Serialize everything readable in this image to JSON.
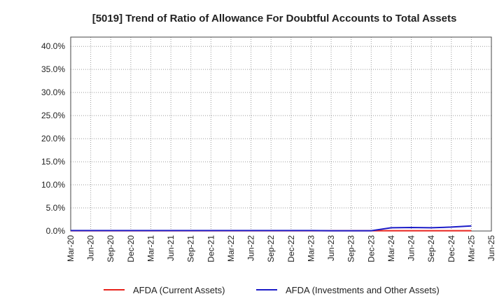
{
  "chart_data": {
    "type": "line",
    "title": "[5019]  Trend of Ratio of Allowance For Doubtful Accounts to Total Assets",
    "xlabel": "",
    "ylabel": "",
    "x_tick_labels": [
      "Mar-20",
      "Jun-20",
      "Sep-20",
      "Dec-20",
      "Mar-21",
      "Jun-21",
      "Sep-21",
      "Dec-21",
      "Mar-22",
      "Jun-22",
      "Sep-22",
      "Dec-22",
      "Mar-23",
      "Jun-23",
      "Sep-23",
      "Dec-23",
      "Mar-24",
      "Jun-24",
      "Sep-24",
      "Dec-24",
      "Mar-25",
      "Jun-25"
    ],
    "y_tick_labels": [
      "0.0%",
      "5.0%",
      "10.0%",
      "15.0%",
      "20.0%",
      "25.0%",
      "30.0%",
      "35.0%",
      "40.0%"
    ],
    "y_ticks": [
      0,
      5,
      10,
      15,
      20,
      25,
      30,
      35,
      40
    ],
    "ylim": [
      0,
      42
    ],
    "grid": true,
    "legend_position": "bottom",
    "x": [
      "Mar-20",
      "Jun-20",
      "Sep-20",
      "Dec-20",
      "Mar-21",
      "Jun-21",
      "Sep-21",
      "Dec-21",
      "Mar-22",
      "Jun-22",
      "Sep-22",
      "Dec-22",
      "Mar-23",
      "Jun-23",
      "Sep-23",
      "Dec-23",
      "Mar-24",
      "Jun-24",
      "Sep-24",
      "Dec-24",
      "Mar-25"
    ],
    "series": [
      {
        "name": "AFDA (Current Assets)",
        "color": "#e8231c",
        "values": [
          0.05,
          0.05,
          0.05,
          0.05,
          0.05,
          0.05,
          0.05,
          0.05,
          0.05,
          0.05,
          0.05,
          0.05,
          0.05,
          0.05,
          0.05,
          0.05,
          0.05,
          0.05,
          0.05,
          0.05,
          0.05
        ]
      },
      {
        "name": "AFDA (Investments and Other Assets)",
        "color": "#1c1cc8",
        "values": [
          0.1,
          0.1,
          0.1,
          0.1,
          0.1,
          0.1,
          0.1,
          0.1,
          0.1,
          0.1,
          0.1,
          0.1,
          0.1,
          0.05,
          0.05,
          0.05,
          0.7,
          0.75,
          0.7,
          0.85,
          1.1
        ]
      }
    ]
  }
}
